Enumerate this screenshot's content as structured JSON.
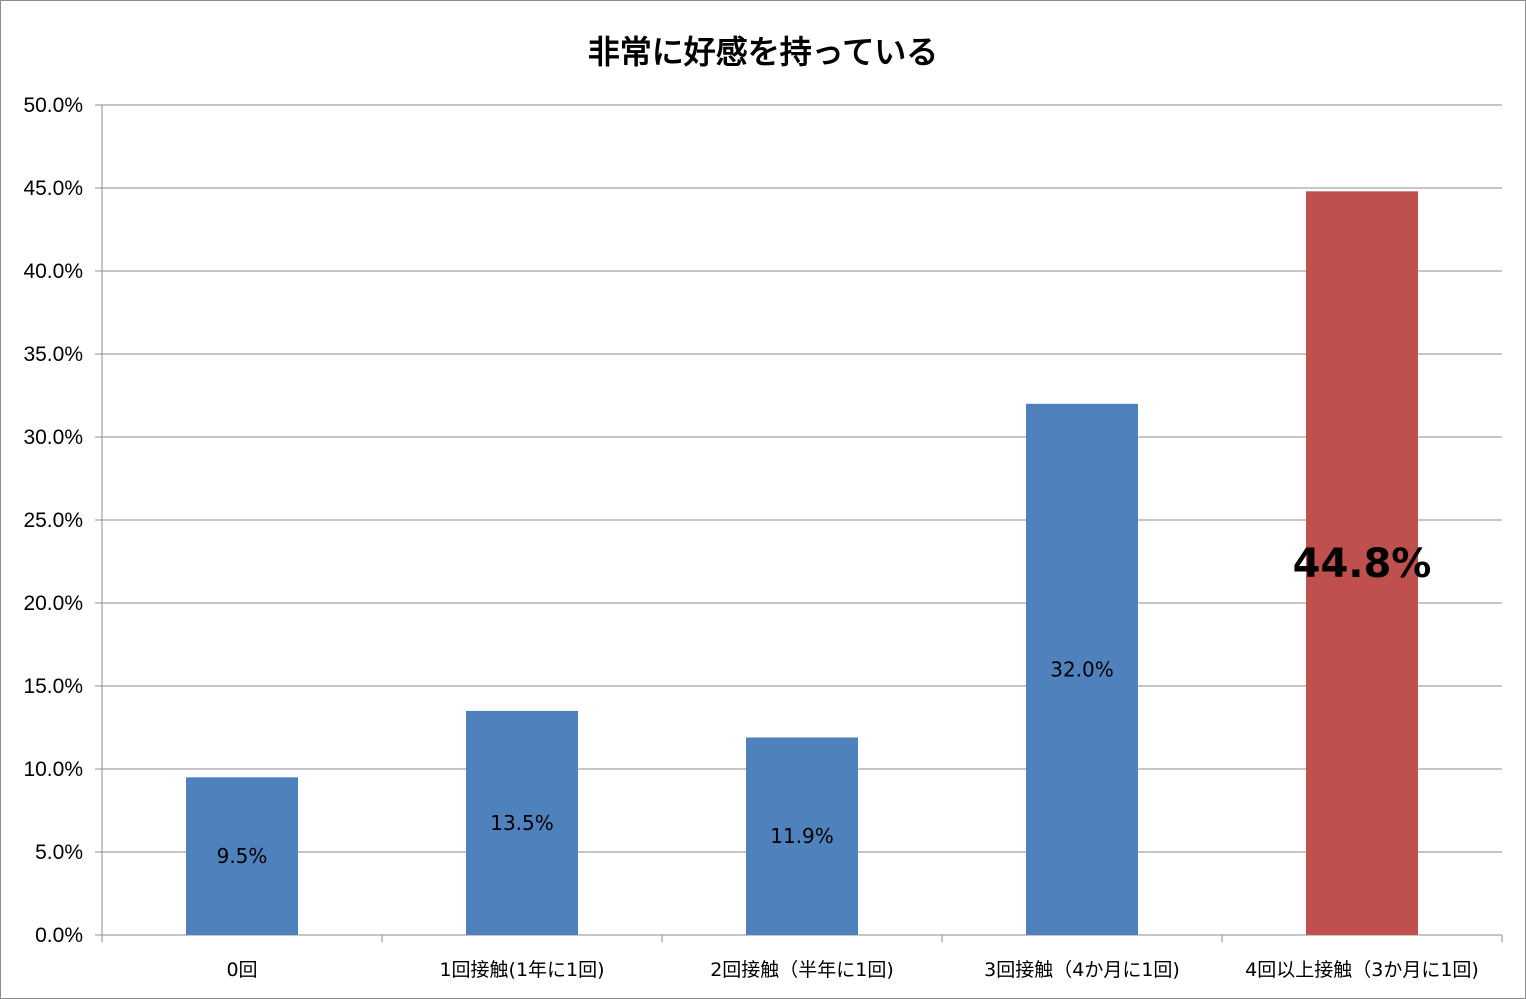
{
  "chart_data": {
    "type": "bar",
    "title": "非常に好感を持っている",
    "xlabel": "",
    "ylabel": "",
    "categories": [
      "0回",
      "1回接触(1年に1回)",
      "2回接触（半年に1回)",
      "3回接触（4か月に1回)",
      "4回以上接触（3か月に1回)"
    ],
    "values": [
      9.5,
      13.5,
      11.9,
      32.0,
      44.8
    ],
    "data_labels": [
      "9.5%",
      "13.5%",
      "11.9%",
      "32.0%",
      "44.8%"
    ],
    "ylim": [
      0,
      50
    ],
    "y_ticks": [
      "0.0%",
      "5.0%",
      "10.0%",
      "15.0%",
      "20.0%",
      "25.0%",
      "30.0%",
      "35.0%",
      "40.0%",
      "45.0%",
      "50.0%"
    ],
    "grid": true,
    "legend": "none",
    "colors": {
      "default_bar": "#4F81BD",
      "highlight_bar": "#C0504D",
      "gridline": "#8C8C8C",
      "axis": "#8C8C8C"
    },
    "highlight_index": 4
  }
}
